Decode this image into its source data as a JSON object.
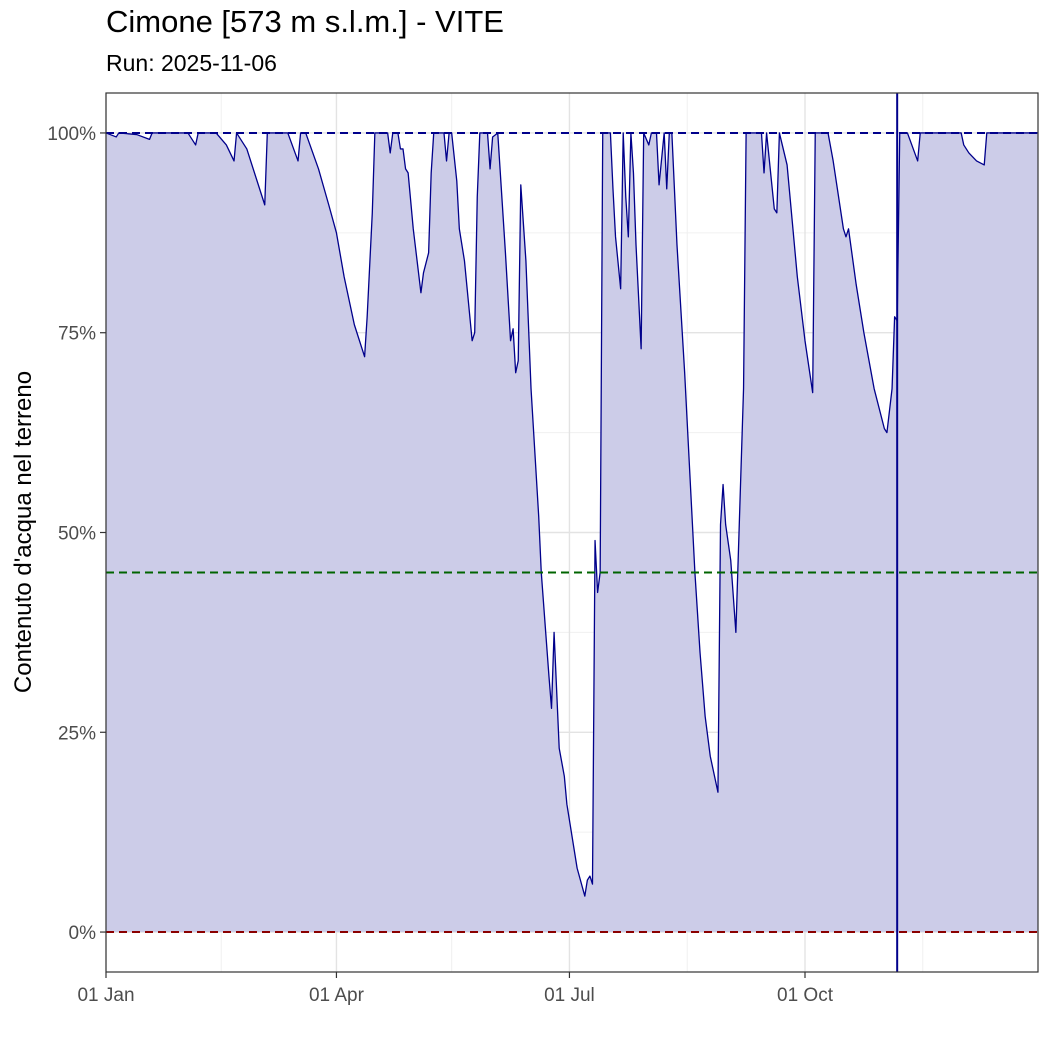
{
  "chart_data": {
    "type": "area",
    "title": "Cimone [573 m s.l.m.] - VITE",
    "subtitle": "Run: 2025-11-06",
    "xlabel": "",
    "ylabel": "Contenuto d'acqua nel terreno",
    "x_axis": {
      "type": "date",
      "range": [
        "2025-01-01",
        "2025-12-31"
      ],
      "ticks": [
        {
          "date": "2025-01-01",
          "label": "01 Jan"
        },
        {
          "date": "2025-04-01",
          "label": "01 Apr"
        },
        {
          "date": "2025-07-01",
          "label": "01 Jul"
        },
        {
          "date": "2025-10-01",
          "label": "01 Oct"
        }
      ],
      "minor_ticks": [
        "2025-02-15",
        "2025-05-16",
        "2025-08-16",
        "2025-11-16"
      ]
    },
    "y_axis": {
      "range": [
        -5,
        105
      ],
      "ticks": [
        {
          "value": 0,
          "label": "0%"
        },
        {
          "value": 25,
          "label": "25%"
        },
        {
          "value": 50,
          "label": "50%"
        },
        {
          "value": 75,
          "label": "75%"
        },
        {
          "value": 100,
          "label": "100%"
        }
      ],
      "minor_ticks": [
        12.5,
        37.5,
        62.5,
        87.5
      ]
    },
    "grid": true,
    "reference_lines": [
      {
        "value": 100,
        "color": "#00008b",
        "style": "dashed"
      },
      {
        "value": 45,
        "color": "#006400",
        "style": "dashed"
      },
      {
        "value": 0,
        "color": "#8b0000",
        "style": "dashed"
      }
    ],
    "vertical_marker": {
      "date": "2025-11-06",
      "color": "#00008b"
    },
    "series": [
      {
        "color": "#00008b",
        "fill": "#cccce8",
        "points": [
          [
            "2025-01-01",
            100
          ],
          [
            "2025-01-05",
            99.5
          ],
          [
            "2025-01-06",
            100
          ],
          [
            "2025-01-13",
            99.8
          ],
          [
            "2025-01-18",
            99.2
          ],
          [
            "2025-01-19",
            100
          ],
          [
            "2025-02-02",
            100
          ],
          [
            "2025-02-05",
            98.5
          ],
          [
            "2025-02-06",
            100
          ],
          [
            "2025-02-13",
            100
          ],
          [
            "2025-02-17",
            98.5
          ],
          [
            "2025-02-20",
            96.5
          ],
          [
            "2025-02-21",
            100
          ],
          [
            "2025-02-25",
            98
          ],
          [
            "2025-03-04",
            91
          ],
          [
            "2025-03-05",
            100
          ],
          [
            "2025-03-13",
            100
          ],
          [
            "2025-03-17",
            96.5
          ],
          [
            "2025-03-18",
            100
          ],
          [
            "2025-03-20",
            100
          ],
          [
            "2025-03-25",
            95.5
          ],
          [
            "2025-03-29",
            91
          ],
          [
            "2025-04-01",
            87.5
          ],
          [
            "2025-04-04",
            82
          ],
          [
            "2025-04-08",
            76
          ],
          [
            "2025-04-12",
            72
          ],
          [
            "2025-04-13",
            77
          ],
          [
            "2025-04-15",
            90
          ],
          [
            "2025-04-16",
            100
          ],
          [
            "2025-04-21",
            100
          ],
          [
            "2025-04-22",
            97.5
          ],
          [
            "2025-04-23",
            100
          ],
          [
            "2025-04-25",
            100
          ],
          [
            "2025-04-26",
            98
          ],
          [
            "2025-04-27",
            98
          ],
          [
            "2025-04-28",
            95.5
          ],
          [
            "2025-04-29",
            95
          ],
          [
            "2025-05-01",
            88
          ],
          [
            "2025-05-04",
            80
          ],
          [
            "2025-05-05",
            82.5
          ],
          [
            "2025-05-07",
            85
          ],
          [
            "2025-05-08",
            95
          ],
          [
            "2025-05-09",
            100
          ],
          [
            "2025-05-13",
            100
          ],
          [
            "2025-05-14",
            96.5
          ],
          [
            "2025-05-15",
            100
          ],
          [
            "2025-05-16",
            100
          ],
          [
            "2025-05-18",
            94
          ],
          [
            "2025-05-19",
            88
          ],
          [
            "2025-05-21",
            84
          ],
          [
            "2025-05-24",
            74
          ],
          [
            "2025-05-25",
            75
          ],
          [
            "2025-05-26",
            92
          ],
          [
            "2025-05-27",
            100
          ],
          [
            "2025-05-30",
            100
          ],
          [
            "2025-05-31",
            95.5
          ],
          [
            "2025-06-01",
            99.5
          ],
          [
            "2025-06-03",
            100
          ],
          [
            "2025-06-06",
            85
          ],
          [
            "2025-06-08",
            74
          ],
          [
            "2025-06-09",
            75.5
          ],
          [
            "2025-06-10",
            70
          ],
          [
            "2025-06-11",
            71.5
          ],
          [
            "2025-06-12",
            93.5
          ],
          [
            "2025-06-14",
            84
          ],
          [
            "2025-06-16",
            68
          ],
          [
            "2025-06-19",
            52
          ],
          [
            "2025-06-20",
            45
          ],
          [
            "2025-06-23",
            32
          ],
          [
            "2025-06-24",
            28
          ],
          [
            "2025-06-25",
            37.5
          ],
          [
            "2025-06-27",
            23
          ],
          [
            "2025-06-29",
            19.5
          ],
          [
            "2025-06-30",
            16
          ],
          [
            "2025-07-04",
            8
          ],
          [
            "2025-07-07",
            4.5
          ],
          [
            "2025-07-08",
            6.5
          ],
          [
            "2025-07-09",
            7
          ],
          [
            "2025-07-10",
            6
          ],
          [
            "2025-07-11",
            49
          ],
          [
            "2025-07-12",
            42.5
          ],
          [
            "2025-07-13",
            45
          ],
          [
            "2025-07-14",
            100
          ],
          [
            "2025-07-17",
            100
          ],
          [
            "2025-07-18",
            93
          ],
          [
            "2025-07-19",
            87
          ],
          [
            "2025-07-21",
            80.5
          ],
          [
            "2025-07-22",
            100
          ],
          [
            "2025-07-23",
            92
          ],
          [
            "2025-07-24",
            87
          ],
          [
            "2025-07-25",
            100
          ],
          [
            "2025-07-26",
            95
          ],
          [
            "2025-07-27",
            86
          ],
          [
            "2025-07-29",
            73
          ],
          [
            "2025-07-30",
            100
          ],
          [
            "2025-08-01",
            98.5
          ],
          [
            "2025-08-02",
            100
          ],
          [
            "2025-08-04",
            100
          ],
          [
            "2025-08-05",
            93.5
          ],
          [
            "2025-08-07",
            100
          ],
          [
            "2025-08-08",
            93
          ],
          [
            "2025-08-09",
            100
          ],
          [
            "2025-08-10",
            100
          ],
          [
            "2025-08-12",
            86
          ],
          [
            "2025-08-15",
            70
          ],
          [
            "2025-08-19",
            45
          ],
          [
            "2025-08-21",
            35
          ],
          [
            "2025-08-23",
            27
          ],
          [
            "2025-08-25",
            22
          ],
          [
            "2025-08-28",
            17.5
          ],
          [
            "2025-08-29",
            51
          ],
          [
            "2025-08-30",
            56
          ],
          [
            "2025-08-31",
            51
          ],
          [
            "2025-09-02",
            46.5
          ],
          [
            "2025-09-04",
            37.5
          ],
          [
            "2025-09-07",
            68
          ],
          [
            "2025-09-08",
            100
          ],
          [
            "2025-09-14",
            100
          ],
          [
            "2025-09-15",
            95
          ],
          [
            "2025-09-16",
            100
          ],
          [
            "2025-09-19",
            90.5
          ],
          [
            "2025-09-20",
            90
          ],
          [
            "2025-09-21",
            100
          ],
          [
            "2025-09-24",
            96
          ],
          [
            "2025-09-26",
            89
          ],
          [
            "2025-09-28",
            82
          ],
          [
            "2025-10-01",
            74
          ],
          [
            "2025-10-04",
            67.5
          ],
          [
            "2025-10-05",
            100
          ],
          [
            "2025-10-10",
            100
          ],
          [
            "2025-10-12",
            96.5
          ],
          [
            "2025-10-16",
            88
          ],
          [
            "2025-10-17",
            87
          ],
          [
            "2025-10-18",
            88
          ],
          [
            "2025-10-21",
            81
          ],
          [
            "2025-10-24",
            75
          ],
          [
            "2025-10-28",
            68
          ],
          [
            "2025-11-01",
            63
          ],
          [
            "2025-11-02",
            62.5
          ],
          [
            "2025-11-04",
            68
          ],
          [
            "2025-11-05",
            77
          ],
          [
            "2025-11-06",
            76.5
          ],
          [
            "2025-11-07",
            100
          ],
          [
            "2025-11-10",
            100
          ],
          [
            "2025-11-14",
            96.5
          ],
          [
            "2025-11-15",
            100
          ],
          [
            "2025-12-01",
            100
          ],
          [
            "2025-12-02",
            98.5
          ],
          [
            "2025-12-04",
            97.5
          ],
          [
            "2025-12-07",
            96.5
          ],
          [
            "2025-12-10",
            96
          ],
          [
            "2025-12-11",
            100
          ],
          [
            "2025-12-31",
            100
          ]
        ]
      }
    ]
  }
}
